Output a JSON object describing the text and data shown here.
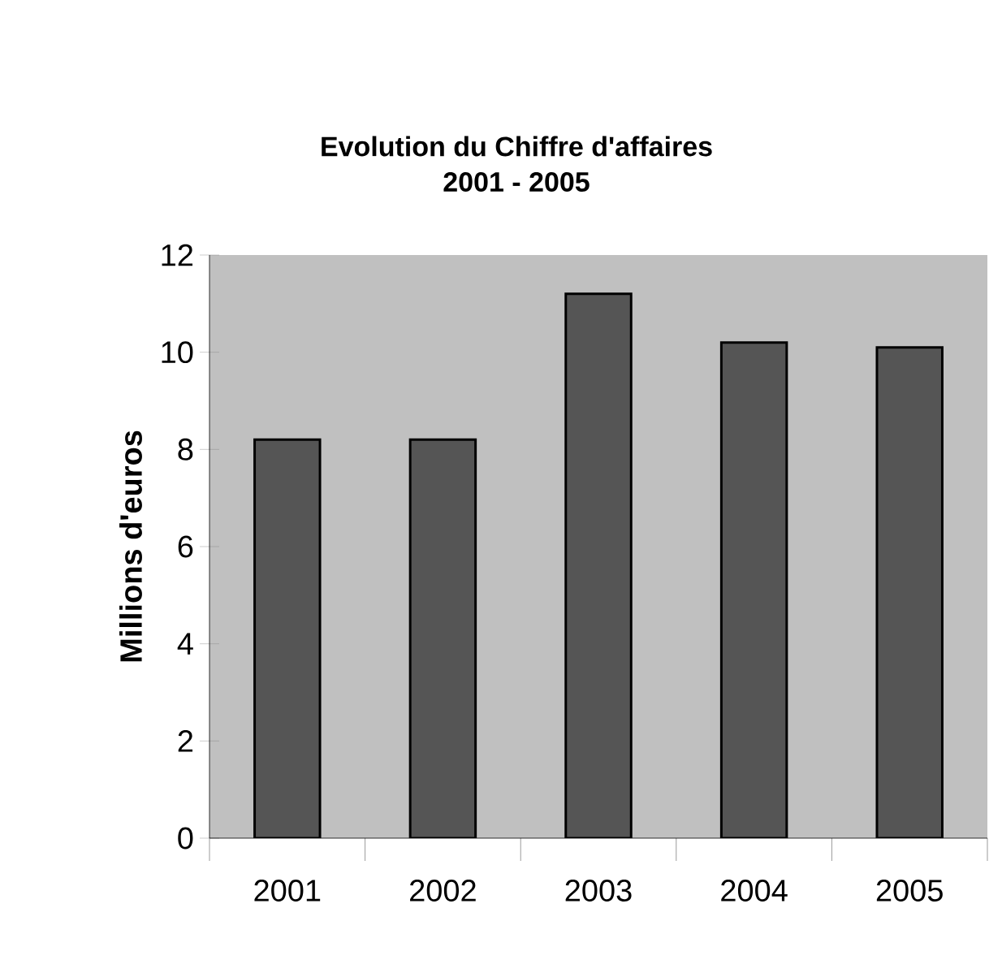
{
  "chart_data": {
    "type": "bar",
    "title": "Evolution du Chiffre d'affaires",
    "subtitle": "2001 - 2005",
    "ylabel": "Millions d'euros",
    "categories": [
      "2001",
      "2002",
      "2003",
      "2004",
      "2005"
    ],
    "values": [
      8.2,
      8.2,
      11.2,
      10.2,
      10.1
    ],
    "color": "#555555",
    "ylim": [
      0,
      12
    ],
    "yticks": [
      0,
      2,
      4,
      6,
      8,
      10,
      12
    ]
  }
}
